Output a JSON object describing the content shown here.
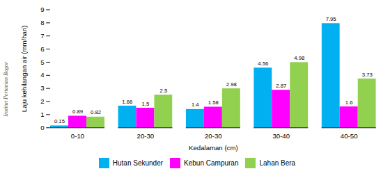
{
  "chart_data": {
    "type": "bar",
    "categories": [
      "0-10",
      "20-30",
      "20-30",
      "30-40",
      "40-50"
    ],
    "series": [
      {
        "name": "Hutan Sekunder",
        "color": "#00B0F0",
        "values": [
          0.15,
          1.66,
          1.4,
          4.56,
          7.95
        ]
      },
      {
        "name": "Kebun Campuran",
        "color": "#FF00FF",
        "values": [
          0.89,
          1.5,
          1.58,
          2.87,
          1.6
        ]
      },
      {
        "name": "Lahan Bera",
        "color": "#92D050",
        "values": [
          0.82,
          2.5,
          2.98,
          4.98,
          3.73
        ]
      }
    ],
    "xlabel": "Kedalaman (cm)",
    "ylabel": "Laju kehilangan air (mm/hari)",
    "ylim": [
      0,
      9
    ],
    "yticks": [
      0,
      1,
      2,
      3,
      4,
      5,
      6,
      7,
      8,
      9
    ],
    "data_labels": true,
    "grid": false,
    "legend": "bottom",
    "annotations": [
      "Institut Pertanian Bogor"
    ]
  }
}
